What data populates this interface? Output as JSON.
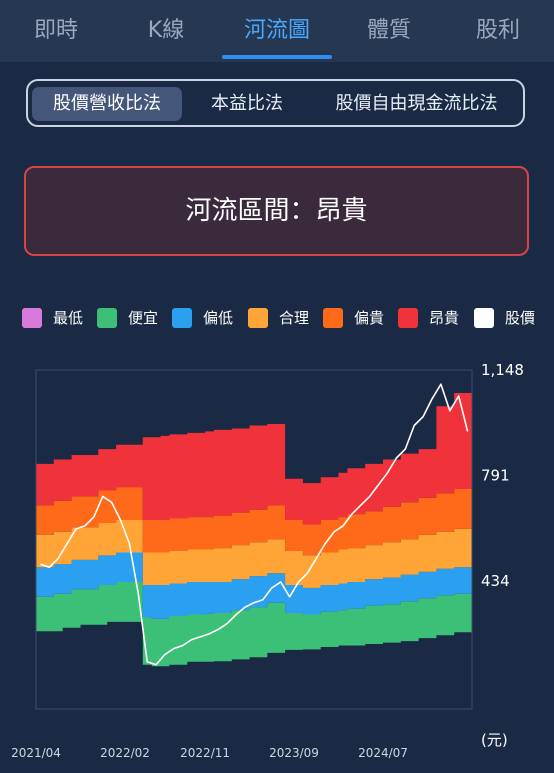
{
  "top_tabs": [
    {
      "label": "即時",
      "active": false
    },
    {
      "label": "K線",
      "active": false
    },
    {
      "label": "河流圖",
      "active": true
    },
    {
      "label": "體質",
      "active": false
    },
    {
      "label": "股利",
      "active": false
    }
  ],
  "methods": [
    {
      "label": "股價營收比法",
      "active": true
    },
    {
      "label": "本益比法",
      "active": false
    },
    {
      "label": "股價自由現金流比法",
      "active": false
    }
  ],
  "zone_label": "河流區間：昂貴",
  "colors": {
    "lowest": "#d67bdc",
    "cheap": "#3cbf77",
    "low": "#2b9ff0",
    "fair": "#ffa538",
    "high": "#ff6a1a",
    "expensive": "#f0323a",
    "price": "#ffffff"
  },
  "legend": [
    {
      "label": "最低",
      "color": "#d67bdc"
    },
    {
      "label": "便宜",
      "color": "#3cbf77"
    },
    {
      "label": "偏低",
      "color": "#2b9ff0"
    },
    {
      "label": "合理",
      "color": "#ffa538"
    },
    {
      "label": "偏貴",
      "color": "#ff6a1a"
    },
    {
      "label": "昂貴",
      "color": "#f0323a"
    },
    {
      "label": "股價",
      "color": "#ffffff"
    }
  ],
  "chart_data": {
    "type": "area",
    "ylim": [
      0,
      1148
    ],
    "yticks": [
      "1,148",
      "791",
      "434"
    ],
    "ytick_values": [
      1148,
      791,
      434
    ],
    "y_unit": "(元)",
    "xticks": [
      "2021/04",
      "2022/02",
      "2022/11",
      "2023/09",
      "2024/07"
    ],
    "xtick_positions": [
      0,
      10,
      19,
      29,
      39
    ],
    "band_boundaries": {
      "cheap_bottom": [
        263,
        263,
        263,
        275,
        275,
        285,
        285,
        285,
        295,
        295,
        295,
        295,
        150,
        145,
        145,
        150,
        150,
        160,
        160,
        160,
        162,
        162,
        168,
        168,
        175,
        175,
        190,
        190,
        200,
        200,
        202,
        202,
        210,
        210,
        215,
        215,
        215,
        220,
        220,
        225,
        225,
        230,
        230,
        240,
        240,
        250,
        250,
        260,
        260
      ],
      "cheap_top": [
        380,
        380,
        390,
        390,
        405,
        405,
        405,
        420,
        420,
        430,
        430,
        430,
        310,
        305,
        305,
        315,
        315,
        320,
        320,
        322,
        325,
        325,
        335,
        335,
        345,
        345,
        360,
        360,
        325,
        325,
        320,
        320,
        330,
        330,
        335,
        340,
        340,
        350,
        350,
        355,
        355,
        365,
        365,
        375,
        375,
        385,
        385,
        390,
        390
      ],
      "low_top": [
        480,
        480,
        490,
        490,
        505,
        505,
        505,
        520,
        520,
        530,
        530,
        530,
        420,
        420,
        420,
        425,
        425,
        430,
        430,
        430,
        430,
        430,
        440,
        440,
        450,
        450,
        460,
        460,
        420,
        420,
        410,
        410,
        420,
        420,
        425,
        430,
        430,
        440,
        440,
        445,
        445,
        455,
        455,
        465,
        465,
        475,
        475,
        480,
        480
      ],
      "fair_top": [
        590,
        590,
        600,
        600,
        615,
        615,
        615,
        630,
        630,
        640,
        640,
        640,
        530,
        530,
        530,
        535,
        535,
        540,
        540,
        540,
        545,
        545,
        555,
        555,
        565,
        565,
        575,
        575,
        535,
        535,
        520,
        520,
        530,
        530,
        540,
        545,
        545,
        555,
        555,
        565,
        565,
        575,
        575,
        590,
        590,
        600,
        600,
        610,
        610
      ],
      "high_top": [
        690,
        690,
        705,
        705,
        720,
        720,
        720,
        740,
        740,
        750,
        750,
        750,
        640,
        640,
        640,
        645,
        645,
        650,
        650,
        650,
        655,
        655,
        665,
        665,
        675,
        675,
        690,
        690,
        640,
        640,
        625,
        625,
        640,
        640,
        650,
        660,
        660,
        670,
        670,
        685,
        685,
        700,
        700,
        715,
        715,
        730,
        730,
        745,
        745
      ],
      "expensive_top": [
        830,
        830,
        845,
        845,
        860,
        860,
        860,
        880,
        880,
        895,
        895,
        895,
        920,
        920,
        925,
        930,
        930,
        935,
        935,
        940,
        945,
        945,
        950,
        950,
        960,
        960,
        965,
        965,
        780,
        780,
        765,
        765,
        785,
        785,
        800,
        815,
        815,
        830,
        830,
        845,
        845,
        865,
        865,
        880,
        880,
        1025,
        1025,
        1070,
        1070
      ]
    },
    "price": [
      [
        0,
        490
      ],
      [
        1,
        480
      ],
      [
        2,
        510
      ],
      [
        3,
        560
      ],
      [
        4,
        610
      ],
      [
        5,
        620
      ],
      [
        6,
        650
      ],
      [
        7,
        720
      ],
      [
        8,
        700
      ],
      [
        9,
        640
      ],
      [
        10,
        560
      ],
      [
        11,
        390
      ],
      [
        12,
        160
      ],
      [
        13,
        150
      ],
      [
        14,
        185
      ],
      [
        15,
        205
      ],
      [
        16,
        215
      ],
      [
        17,
        235
      ],
      [
        18,
        245
      ],
      [
        19,
        255
      ],
      [
        20,
        270
      ],
      [
        21,
        290
      ],
      [
        22,
        320
      ],
      [
        23,
        345
      ],
      [
        24,
        360
      ],
      [
        25,
        370
      ],
      [
        26,
        410
      ],
      [
        27,
        430
      ],
      [
        28,
        380
      ],
      [
        29,
        430
      ],
      [
        30,
        460
      ],
      [
        31,
        510
      ],
      [
        32,
        560
      ],
      [
        33,
        600
      ],
      [
        34,
        620
      ],
      [
        35,
        660
      ],
      [
        36,
        690
      ],
      [
        37,
        720
      ],
      [
        38,
        760
      ],
      [
        39,
        800
      ],
      [
        40,
        850
      ],
      [
        41,
        880
      ],
      [
        42,
        960
      ],
      [
        43,
        990
      ],
      [
        44,
        1050
      ],
      [
        45,
        1100
      ],
      [
        46,
        1010
      ],
      [
        47,
        1060
      ],
      [
        48,
        940
      ]
    ]
  }
}
